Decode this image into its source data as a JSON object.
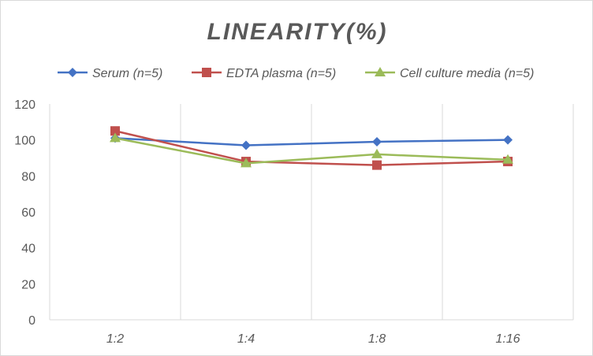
{
  "chart_data": {
    "type": "line",
    "title": "LINEARITY(%)",
    "xlabel": "",
    "ylabel": "",
    "categories": [
      "1:2",
      "1:4",
      "1:8",
      "1:16"
    ],
    "ylim": [
      0,
      120
    ],
    "yticks": [
      0,
      20,
      40,
      60,
      80,
      100,
      120
    ],
    "grid": "vertical",
    "legend_position": "top",
    "series": [
      {
        "name": "Serum (n=5)",
        "values": [
          101,
          97,
          99,
          100
        ],
        "color": "#4472c4",
        "marker": "diamond"
      },
      {
        "name": "EDTA plasma (n=5)",
        "values": [
          105,
          88,
          86,
          88
        ],
        "color": "#c0504d",
        "marker": "square"
      },
      {
        "name": "Cell culture media (n=5)",
        "values": [
          101,
          87,
          92,
          89
        ],
        "color": "#9bbb59",
        "marker": "triangle"
      }
    ]
  }
}
